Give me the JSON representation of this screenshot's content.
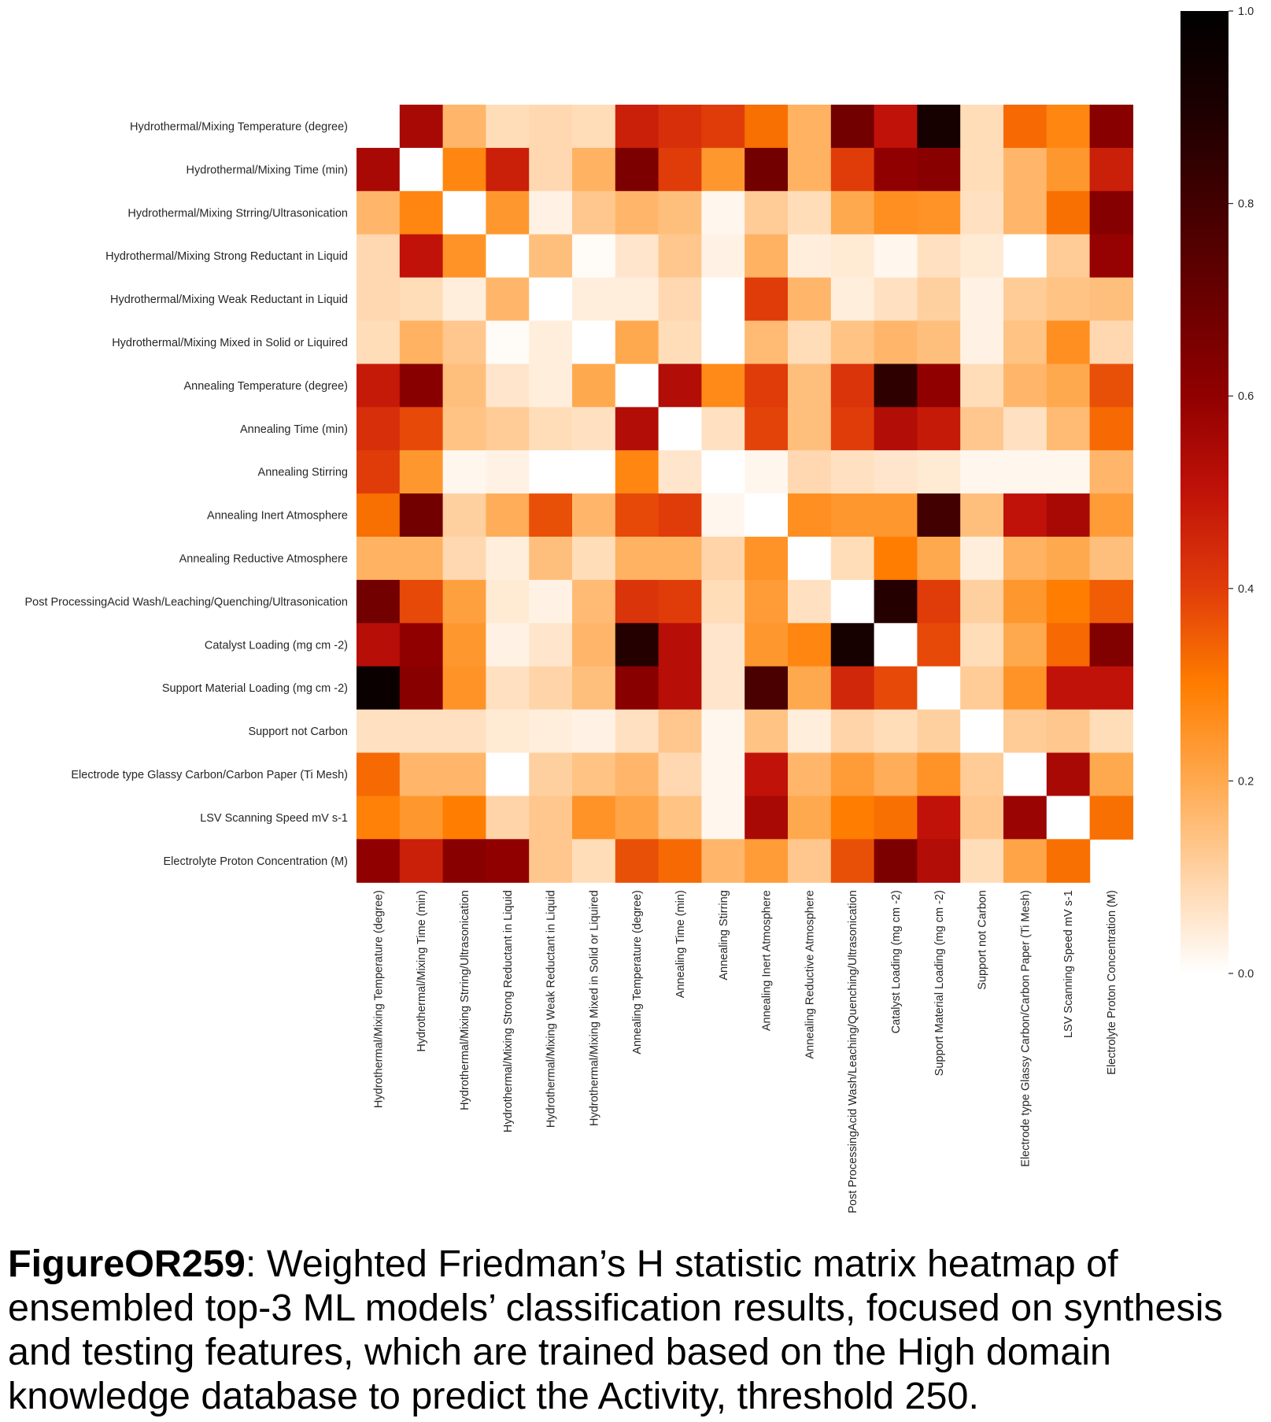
{
  "chart_data": {
    "type": "heatmap",
    "labels": [
      "Hydrothermal/Mixing Temperature (degree)",
      "Hydrothermal/Mixing Time (min)",
      "Hydrothermal/Mixing Strring/Ultrasonication",
      "Hydrothermal/Mixing Strong Reductant in Liquid",
      "Hydrothermal/Mixing Weak Reductant in Liquid",
      "Hydrothermal/Mixing Mixed in Solid or Liquired",
      "Annealing Temperature (degree)",
      "Annealing Time (min)",
      "Annealing Stirring",
      "Annealing Inert Atmosphere",
      "Annealing Reductive Atmosphere",
      "Post ProcessingAcid Wash/Leaching/Quenching/Ultrasonication",
      "Catalyst Loading (mg cm -2)",
      "Support Material Loading (mg cm -2)",
      "Support not Carbon",
      "Electrode type Glassy Carbon/Carbon Paper (Ti Mesh)",
      "LSV Scanning Speed mV s-1",
      "Electrolyte Proton Concentration (M)"
    ],
    "values": [
      [
        null,
        0.55,
        0.17,
        0.08,
        0.09,
        0.08,
        0.47,
        0.43,
        0.4,
        0.32,
        0.18,
        0.68,
        0.5,
        0.92,
        0.08,
        0.33,
        0.28,
        0.62
      ],
      [
        0.55,
        0.0,
        0.28,
        0.47,
        0.09,
        0.18,
        0.65,
        0.4,
        0.24,
        0.68,
        0.18,
        0.4,
        0.6,
        0.62,
        0.08,
        0.17,
        0.24,
        0.47
      ],
      [
        0.17,
        0.28,
        0.0,
        0.24,
        0.03,
        0.13,
        0.17,
        0.15,
        0.02,
        0.12,
        0.08,
        0.2,
        0.26,
        0.25,
        0.07,
        0.17,
        0.32,
        0.63
      ],
      [
        0.09,
        0.5,
        0.25,
        0.0,
        0.15,
        0.01,
        0.06,
        0.13,
        0.03,
        0.18,
        0.04,
        0.05,
        0.02,
        0.07,
        0.05,
        0.0,
        0.12,
        0.59
      ],
      [
        0.09,
        0.08,
        0.04,
        0.17,
        0.0,
        0.04,
        0.04,
        0.09,
        0.0,
        0.4,
        0.17,
        0.04,
        0.07,
        0.11,
        0.03,
        0.12,
        0.14,
        0.15
      ],
      [
        0.08,
        0.18,
        0.13,
        0.01,
        0.04,
        0.0,
        0.2,
        0.08,
        0.0,
        0.16,
        0.08,
        0.14,
        0.17,
        0.15,
        0.03,
        0.14,
        0.26,
        0.09
      ],
      [
        0.48,
        0.62,
        0.15,
        0.06,
        0.04,
        0.2,
        0.0,
        0.53,
        0.27,
        0.4,
        0.15,
        0.42,
        0.85,
        0.6,
        0.08,
        0.17,
        0.2,
        0.37
      ],
      [
        0.43,
        0.38,
        0.14,
        0.12,
        0.08,
        0.07,
        0.53,
        0.0,
        0.07,
        0.39,
        0.15,
        0.4,
        0.53,
        0.48,
        0.13,
        0.07,
        0.16,
        0.33
      ],
      [
        0.4,
        0.24,
        0.02,
        0.03,
        0.0,
        0.0,
        0.28,
        0.06,
        0.0,
        0.02,
        0.09,
        0.07,
        0.06,
        0.05,
        0.02,
        0.02,
        0.02,
        0.17
      ],
      [
        0.32,
        0.68,
        0.11,
        0.19,
        0.37,
        0.17,
        0.38,
        0.4,
        0.02,
        0.0,
        0.26,
        0.24,
        0.24,
        0.8,
        0.15,
        0.5,
        0.55,
        0.23
      ],
      [
        0.18,
        0.18,
        0.09,
        0.04,
        0.15,
        0.08,
        0.18,
        0.18,
        0.1,
        0.25,
        0.0,
        0.08,
        0.3,
        0.2,
        0.04,
        0.18,
        0.2,
        0.15
      ],
      [
        0.68,
        0.38,
        0.22,
        0.05,
        0.03,
        0.16,
        0.42,
        0.4,
        0.08,
        0.23,
        0.07,
        0.0,
        0.88,
        0.4,
        0.11,
        0.24,
        0.3,
        0.35
      ],
      [
        0.52,
        0.6,
        0.24,
        0.03,
        0.06,
        0.17,
        0.88,
        0.52,
        0.06,
        0.24,
        0.28,
        0.92,
        0.0,
        0.38,
        0.08,
        0.2,
        0.33,
        0.64
      ],
      [
        0.96,
        0.62,
        0.25,
        0.07,
        0.1,
        0.15,
        0.62,
        0.52,
        0.06,
        0.78,
        0.2,
        0.45,
        0.38,
        0.0,
        0.12,
        0.25,
        0.5,
        0.5
      ],
      [
        0.07,
        0.07,
        0.07,
        0.05,
        0.04,
        0.03,
        0.07,
        0.13,
        0.02,
        0.14,
        0.04,
        0.1,
        0.08,
        0.11,
        0.0,
        0.12,
        0.13,
        0.08
      ],
      [
        0.33,
        0.17,
        0.17,
        0.0,
        0.11,
        0.14,
        0.17,
        0.09,
        0.02,
        0.5,
        0.17,
        0.23,
        0.19,
        0.25,
        0.12,
        0.0,
        0.55,
        0.2
      ],
      [
        0.29,
        0.24,
        0.3,
        0.1,
        0.13,
        0.25,
        0.21,
        0.14,
        0.02,
        0.55,
        0.2,
        0.3,
        0.32,
        0.5,
        0.13,
        0.58,
        0.0,
        0.32
      ],
      [
        0.6,
        0.47,
        0.62,
        0.6,
        0.13,
        0.08,
        0.37,
        0.33,
        0.17,
        0.23,
        0.13,
        0.37,
        0.65,
        0.53,
        0.08,
        0.21,
        0.32,
        null
      ]
    ],
    "colormap": "gist_heat_r",
    "colorbar": {
      "ticks": [
        "0.0",
        "0.2",
        "0.4",
        "0.6",
        "0.8",
        "1.0"
      ],
      "range": [
        0,
        1
      ]
    },
    "diagonal_missing": [
      0,
      17
    ]
  },
  "caption": {
    "label": "FigureOR259",
    "text": ": Weighted Friedman’s H statistic matrix heatmap of ensembled top-3 ML models’ classification results, focused on synthesis and testing features, which are trained based on the High domain knowledge database to predict the Activity, threshold 250."
  }
}
